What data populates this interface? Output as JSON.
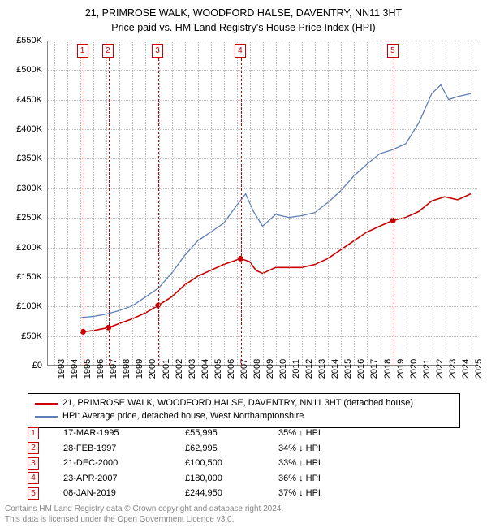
{
  "title_line1": "21, PRIMROSE WALK, WOODFORD HALSE, DAVENTRY, NN11 3HT",
  "title_line2": "Price paid vs. HM Land Registry's House Price Index (HPI)",
  "chart": {
    "type": "line",
    "background_color": "#ffffff",
    "grid_color": "#bbbbbb",
    "axis_color": "#888888",
    "xlim": [
      1992.5,
      2025.5
    ],
    "ylim": [
      0,
      550000
    ],
    "ytick_step": 50000,
    "ytick_labels": [
      "£0",
      "£50K",
      "£100K",
      "£150K",
      "£200K",
      "£250K",
      "£300K",
      "£350K",
      "£400K",
      "£450K",
      "£500K",
      "£550K"
    ],
    "xticks": [
      1993,
      1994,
      1995,
      1996,
      1997,
      1998,
      1999,
      2000,
      2001,
      2002,
      2003,
      2004,
      2005,
      2006,
      2007,
      2008,
      2009,
      2010,
      2011,
      2012,
      2013,
      2014,
      2015,
      2016,
      2017,
      2018,
      2019,
      2020,
      2021,
      2022,
      2023,
      2024,
      2025
    ],
    "series": [
      {
        "name": "price_paid",
        "label": "21, PRIMROSE WALK, WOODFORD HALSE, DAVENTRY, NN11 3HT (detached house)",
        "color": "#cc0000",
        "line_width": 1.6,
        "data": [
          [
            1995.21,
            55995
          ],
          [
            1996,
            58000
          ],
          [
            1997.16,
            62995
          ],
          [
            1998,
            70000
          ],
          [
            1999,
            78000
          ],
          [
            2000,
            88000
          ],
          [
            2000.97,
            100500
          ],
          [
            2002,
            115000
          ],
          [
            2003,
            135000
          ],
          [
            2004,
            150000
          ],
          [
            2005,
            160000
          ],
          [
            2006,
            170000
          ],
          [
            2007.31,
            180000
          ],
          [
            2008,
            175000
          ],
          [
            2008.5,
            160000
          ],
          [
            2009,
            155000
          ],
          [
            2010,
            165000
          ],
          [
            2011,
            165000
          ],
          [
            2012,
            165000
          ],
          [
            2013,
            170000
          ],
          [
            2014,
            180000
          ],
          [
            2015,
            195000
          ],
          [
            2016,
            210000
          ],
          [
            2017,
            225000
          ],
          [
            2018,
            235000
          ],
          [
            2019.02,
            244950
          ],
          [
            2020,
            250000
          ],
          [
            2021,
            260000
          ],
          [
            2022,
            278000
          ],
          [
            2023,
            285000
          ],
          [
            2024,
            280000
          ],
          [
            2025,
            290000
          ]
        ],
        "markers": [
          {
            "x": 1995.21,
            "y": 55995
          },
          {
            "x": 1997.16,
            "y": 62995
          },
          {
            "x": 2000.97,
            "y": 100500
          },
          {
            "x": 2007.31,
            "y": 180000
          },
          {
            "x": 2019.02,
            "y": 244950
          }
        ]
      },
      {
        "name": "hpi",
        "label": "HPI: Average price, detached house, West Northamptonshire",
        "color": "#5b7fb8",
        "line_width": 1.3,
        "data": [
          [
            1995,
            80000
          ],
          [
            1996,
            82000
          ],
          [
            1997,
            86000
          ],
          [
            1998,
            92000
          ],
          [
            1999,
            100000
          ],
          [
            2000,
            115000
          ],
          [
            2001,
            130000
          ],
          [
            2002,
            155000
          ],
          [
            2003,
            185000
          ],
          [
            2004,
            210000
          ],
          [
            2005,
            225000
          ],
          [
            2006,
            240000
          ],
          [
            2007,
            270000
          ],
          [
            2007.7,
            290000
          ],
          [
            2008.3,
            260000
          ],
          [
            2009,
            235000
          ],
          [
            2010,
            255000
          ],
          [
            2011,
            250000
          ],
          [
            2012,
            253000
          ],
          [
            2013,
            258000
          ],
          [
            2014,
            275000
          ],
          [
            2015,
            295000
          ],
          [
            2016,
            320000
          ],
          [
            2017,
            340000
          ],
          [
            2018,
            358000
          ],
          [
            2019,
            365000
          ],
          [
            2020,
            375000
          ],
          [
            2021,
            410000
          ],
          [
            2022,
            460000
          ],
          [
            2022.7,
            475000
          ],
          [
            2023.3,
            450000
          ],
          [
            2024,
            455000
          ],
          [
            2025,
            460000
          ]
        ]
      }
    ],
    "event_markers": [
      {
        "num": "1",
        "x": 1995.21
      },
      {
        "num": "2",
        "x": 1997.16
      },
      {
        "num": "3",
        "x": 2000.97
      },
      {
        "num": "4",
        "x": 2007.31
      },
      {
        "num": "5",
        "x": 2019.02
      }
    ],
    "marker_box_color": "#cc0000",
    "marker_dot_color": "#cc0000"
  },
  "sales": [
    {
      "num": "1",
      "date": "17-MAR-1995",
      "price": "£55,995",
      "pct": "35% ↓ HPI"
    },
    {
      "num": "2",
      "date": "28-FEB-1997",
      "price": "£62,995",
      "pct": "34% ↓ HPI"
    },
    {
      "num": "3",
      "date": "21-DEC-2000",
      "price": "£100,500",
      "pct": "33% ↓ HPI"
    },
    {
      "num": "4",
      "date": "23-APR-2007",
      "price": "£180,000",
      "pct": "36% ↓ HPI"
    },
    {
      "num": "5",
      "date": "08-JAN-2019",
      "price": "£244,950",
      "pct": "37% ↓ HPI"
    }
  ],
  "footer_line1": "Contains HM Land Registry data © Crown copyright and database right 2024.",
  "footer_line2": "This data is licensed under the Open Government Licence v3.0."
}
